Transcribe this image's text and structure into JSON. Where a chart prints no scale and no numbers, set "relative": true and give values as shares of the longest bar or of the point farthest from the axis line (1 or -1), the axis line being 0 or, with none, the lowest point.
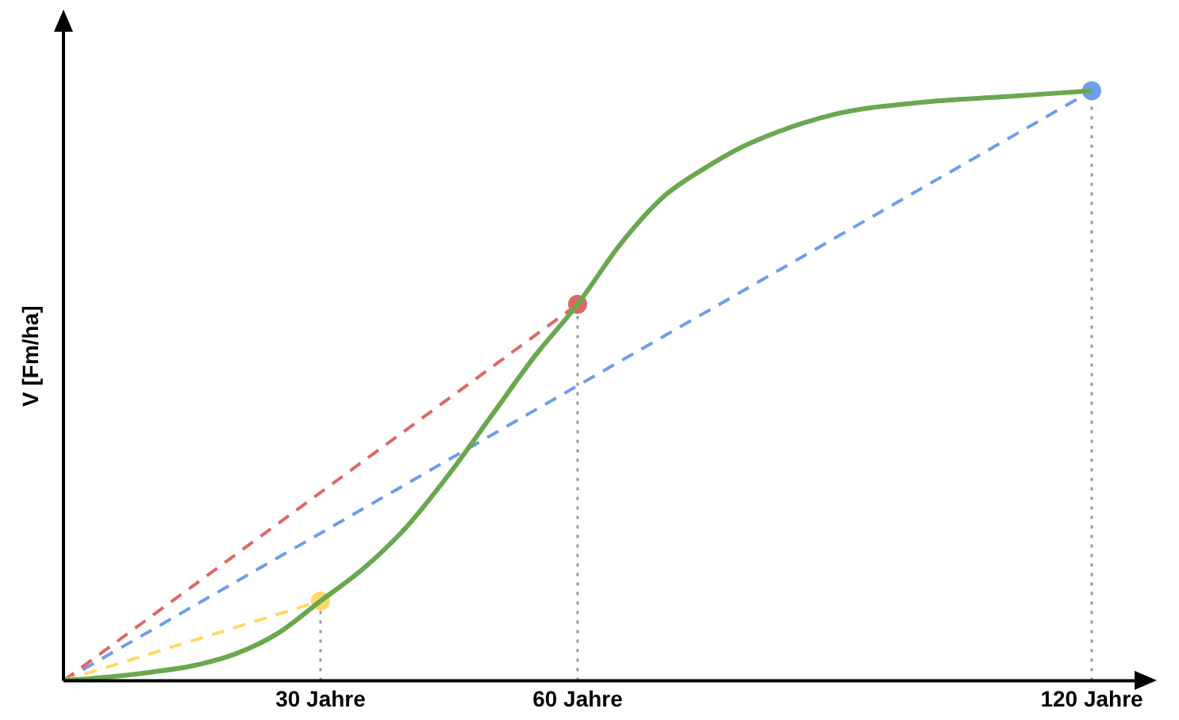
{
  "chart_data": {
    "type": "line",
    "ylabel": "V [Fm/ha]",
    "relative": true,
    "xlim": [
      0,
      125
    ],
    "xticks": [
      {
        "value": 30,
        "label": "30 Jahre"
      },
      {
        "value": 60,
        "label": "60 Jahre"
      },
      {
        "value": 120,
        "label": "120 Jahre"
      }
    ],
    "grid": false,
    "legend": false,
    "series": [
      {
        "color": "#6aa84f",
        "line_style": "solid",
        "marker": "none",
        "x": [
          0,
          5,
          10,
          15,
          20,
          25,
          30,
          35,
          40,
          45,
          50,
          55,
          60,
          65,
          70,
          75,
          80,
          90,
          100,
          110,
          120
        ],
        "values": [
          0,
          0.006,
          0.014,
          0.025,
          0.045,
          0.08,
          0.135,
          0.19,
          0.26,
          0.35,
          0.45,
          0.55,
          0.638,
          0.74,
          0.82,
          0.87,
          0.91,
          0.96,
          0.98,
          0.99,
          1
        ]
      },
      {
        "color": "#ffd966",
        "line_style": "dashed",
        "marker": "circle",
        "x": [
          0,
          30
        ],
        "values": [
          0,
          0.135
        ]
      },
      {
        "color": "#e06666",
        "line_style": "dashed",
        "marker": "circle",
        "x": [
          0,
          60
        ],
        "values": [
          0,
          0.638
        ]
      },
      {
        "color": "#6d9eeb",
        "line_style": "dashed",
        "marker": "circle",
        "x": [
          0,
          120
        ],
        "values": [
          0,
          1
        ]
      }
    ],
    "ref_lines": [
      {
        "axis": "x",
        "value": 30,
        "color": "#999999",
        "line_style": "dotted"
      },
      {
        "axis": "x",
        "value": 60,
        "color": "#999999",
        "line_style": "dotted"
      },
      {
        "axis": "x",
        "value": 120,
        "color": "#999999",
        "line_style": "dotted"
      }
    ]
  }
}
